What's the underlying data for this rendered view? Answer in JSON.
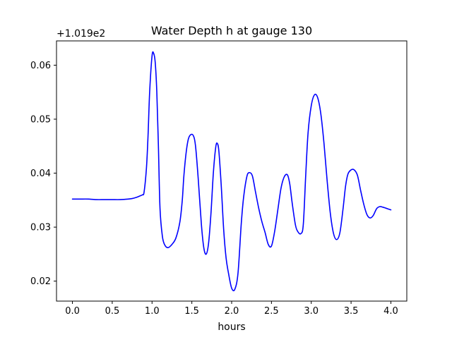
{
  "chart_data": {
    "type": "line",
    "title": "Water Depth h at gauge 130",
    "xlabel": "hours",
    "ylabel": "",
    "offset_label": "+1.019e2",
    "xlim": [
      -0.2,
      4.2
    ],
    "ylim": [
      0.0163,
      0.0645
    ],
    "x_ticks": [
      0.0,
      0.5,
      1.0,
      1.5,
      2.0,
      2.5,
      3.0,
      3.5,
      4.0
    ],
    "x_tick_labels": [
      "0.0",
      "0.5",
      "1.0",
      "1.5",
      "2.0",
      "2.5",
      "3.0",
      "3.5",
      "4.0"
    ],
    "y_ticks": [
      0.02,
      0.03,
      0.04,
      0.05,
      0.06
    ],
    "y_tick_labels": [
      "0.02",
      "0.03",
      "0.04",
      "0.05",
      "0.06"
    ],
    "grid": false,
    "legend": "none",
    "series": [
      {
        "color": "#0000ff",
        "x": [
          0.0,
          0.1,
          0.2,
          0.3,
          0.4,
          0.5,
          0.6,
          0.7,
          0.75,
          0.8,
          0.85,
          0.88,
          0.9,
          0.93,
          0.95,
          0.97,
          1.0,
          1.02,
          1.04,
          1.06,
          1.08,
          1.1,
          1.13,
          1.16,
          1.2,
          1.25,
          1.3,
          1.35,
          1.38,
          1.4,
          1.43,
          1.46,
          1.5,
          1.53,
          1.55,
          1.58,
          1.62,
          1.65,
          1.68,
          1.71,
          1.74,
          1.77,
          1.8,
          1.82,
          1.84,
          1.87,
          1.9,
          1.93,
          1.96,
          2.0,
          2.04,
          2.08,
          2.12,
          2.15,
          2.19,
          2.22,
          2.26,
          2.3,
          2.34,
          2.38,
          2.42,
          2.46,
          2.5,
          2.54,
          2.58,
          2.62,
          2.66,
          2.7,
          2.73,
          2.76,
          2.8,
          2.83,
          2.87,
          2.9,
          2.93,
          2.96,
          3.0,
          3.04,
          3.08,
          3.12,
          3.16,
          3.2,
          3.24,
          3.28,
          3.32,
          3.36,
          3.4,
          3.43,
          3.46,
          3.5,
          3.54,
          3.58,
          3.62,
          3.66,
          3.7,
          3.74,
          3.78,
          3.82,
          3.86,
          3.9,
          3.94,
          4.0
        ],
        "y": [
          0.0352,
          0.0352,
          0.0352,
          0.0351,
          0.0351,
          0.0351,
          0.0351,
          0.0352,
          0.0353,
          0.0355,
          0.0358,
          0.036,
          0.0365,
          0.041,
          0.047,
          0.055,
          0.0617,
          0.0622,
          0.0605,
          0.055,
          0.045,
          0.0335,
          0.0283,
          0.0267,
          0.0262,
          0.0268,
          0.028,
          0.031,
          0.035,
          0.0395,
          0.044,
          0.0465,
          0.0472,
          0.0465,
          0.0445,
          0.039,
          0.0305,
          0.0262,
          0.025,
          0.027,
          0.0325,
          0.04,
          0.0448,
          0.0455,
          0.044,
          0.0375,
          0.0295,
          0.0243,
          0.0215,
          0.0187,
          0.0185,
          0.0215,
          0.0305,
          0.0355,
          0.0393,
          0.0401,
          0.0395,
          0.0365,
          0.0335,
          0.031,
          0.029,
          0.0268,
          0.0265,
          0.0292,
          0.0332,
          0.0372,
          0.0393,
          0.0397,
          0.038,
          0.0345,
          0.0305,
          0.0292,
          0.0288,
          0.0305,
          0.0395,
          0.0475,
          0.0525,
          0.0545,
          0.054,
          0.051,
          0.0455,
          0.0385,
          0.0325,
          0.0288,
          0.0277,
          0.029,
          0.0335,
          0.0375,
          0.0398,
          0.0406,
          0.0406,
          0.0396,
          0.0368,
          0.0342,
          0.0323,
          0.0317,
          0.0322,
          0.0334,
          0.0338,
          0.0337,
          0.0335,
          0.0332
        ]
      }
    ]
  }
}
